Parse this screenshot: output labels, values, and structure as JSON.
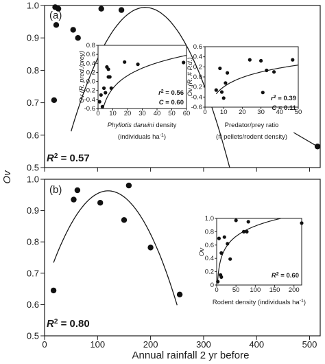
{
  "figure": {
    "ylabel_main": "Ov",
    "xlabel_main": "Annual rainfall 2 yr before"
  },
  "chart_data": [
    {
      "id": "a-main",
      "type": "scatter",
      "panel_label": "(a)",
      "xlabel": "",
      "ylabel": "Ov",
      "xlim": [
        0,
        520
      ],
      "ylim": [
        0.5,
        1.0
      ],
      "xticks": [
        0,
        100,
        200,
        300,
        400,
        500
      ],
      "yticks": [
        0.5,
        0.6,
        0.7,
        0.8,
        0.9,
        1.0
      ],
      "ytick_labels": [
        "0.5",
        "0.6",
        "0.7",
        "0.8",
        "0.9",
        "1.0"
      ],
      "points": [
        {
          "x": 20,
          "y": 0.995
        },
        {
          "x": 22,
          "y": 0.94
        },
        {
          "x": 26,
          "y": 0.99
        },
        {
          "x": 54,
          "y": 0.925
        },
        {
          "x": 63,
          "y": 0.9
        },
        {
          "x": 107,
          "y": 0.99
        },
        {
          "x": 145,
          "y": 0.986
        },
        {
          "x": 18,
          "y": 0.708
        },
        {
          "x": 515,
          "y": 0.565
        }
      ],
      "fit": {
        "type": "quadratic",
        "vertex_x": 190,
        "vertex_y": 0.994,
        "a": -1.95e-05,
        "x_range": [
          50,
          420
        ]
      },
      "tail_line": [
        {
          "x": 470,
          "y": 0.608
        },
        {
          "x": 515,
          "y": 0.565
        }
      ],
      "r2_label": "R",
      "r2_value": " = 0.57"
    },
    {
      "id": "a-inset1",
      "type": "scatter",
      "xlabel_italic": "Phyllotis darwini",
      "xlabel_rest": " density",
      "xlabel_units": "(individuals ha",
      "ylabel": "Ov (R. pred./prey)",
      "xlim": [
        0,
        60
      ],
      "ylim": [
        -0.6,
        0.8
      ],
      "xticks": [
        0,
        10,
        20,
        30,
        40,
        50,
        60
      ],
      "yticks": [
        -0.6,
        -0.4,
        -0.2,
        0.0,
        0.2,
        0.4,
        0.6,
        0.8
      ],
      "ytick_labels": [
        "-0.6",
        "-0.4",
        "-0.2",
        "0.0",
        "0.2",
        "0.4",
        "0.6",
        "0.8"
      ],
      "points": [
        {
          "x": 1,
          "y": -0.45
        },
        {
          "x": 2,
          "y": -0.3
        },
        {
          "x": 3,
          "y": -0.56
        },
        {
          "x": 4,
          "y": -0.15
        },
        {
          "x": 5,
          "y": -0.25
        },
        {
          "x": 6,
          "y": 0.32
        },
        {
          "x": 7,
          "y": 0.27
        },
        {
          "x": 7,
          "y": 0.1
        },
        {
          "x": 8,
          "y": 0.1
        },
        {
          "x": 9,
          "y": -0.15
        },
        {
          "x": 18,
          "y": 0.43
        },
        {
          "x": 27,
          "y": 0.38
        },
        {
          "x": 58,
          "y": 0.42
        }
      ],
      "fit": {
        "type": "log",
        "a": -1.1,
        "b": 0.41,
        "x_range": [
          1.2,
          60
        ]
      },
      "r2": "r",
      "r2_value": " = 0.56",
      "c": "C",
      "c_value": " = 0.60"
    },
    {
      "id": "a-inset2",
      "type": "scatter",
      "xlabel": "Predator/prey ratio",
      "xlabel_units": "(# pellets/rodent density)",
      "ylabel": "Ov (R. # P.d.)",
      "xlim": [
        0,
        50
      ],
      "ylim": [
        -0.6,
        0.6
      ],
      "xticks": [
        0,
        10,
        20,
        30,
        40,
        50
      ],
      "yticks": [
        -0.6,
        -0.4,
        -0.2,
        0.0,
        0.2,
        0.4,
        0.6
      ],
      "ytick_labels": [
        "-0.6",
        "-0.4",
        "-0.2",
        "0.0",
        "0.2",
        "0.4",
        "0.6"
      ],
      "points": [
        {
          "x": 6,
          "y": -0.26
        },
        {
          "x": 8,
          "y": 0.17
        },
        {
          "x": 9,
          "y": -0.3
        },
        {
          "x": 10,
          "y": -0.42
        },
        {
          "x": 11,
          "y": -0.12
        },
        {
          "x": 12,
          "y": 0.08
        },
        {
          "x": 24,
          "y": 0.34
        },
        {
          "x": 30,
          "y": 0.32
        },
        {
          "x": 33,
          "y": 0.13
        },
        {
          "x": 37,
          "y": 0.1
        },
        {
          "x": 47,
          "y": 0.34
        },
        {
          "x": 31,
          "y": -0.31
        }
      ],
      "fit": {
        "type": "log",
        "a": -0.82,
        "b": 0.27,
        "x_range": [
          6,
          50
        ]
      },
      "r2": "r",
      "r2_value": " = 0.39",
      "c": "C",
      "c_value": " = 0.11"
    },
    {
      "id": "b-main",
      "type": "scatter",
      "panel_label": "(b)",
      "xlabel": "Annual rainfall 2 yr before",
      "ylabel": "Ov",
      "xlim": [
        0,
        520
      ],
      "ylim": [
        0.5,
        1.0
      ],
      "xticks": [
        0,
        100,
        200,
        300,
        400,
        500
      ],
      "xtick_labels": [
        "0",
        "100",
        "200",
        "300",
        "400",
        "500"
      ],
      "yticks": [
        0.5,
        0.6,
        0.7,
        0.8,
        0.9,
        1.0
      ],
      "ytick_labels": [
        "0.5",
        "0.6",
        "0.7",
        "0.8",
        "0.9",
        "1.0"
      ],
      "points": [
        {
          "x": 17,
          "y": 0.645
        },
        {
          "x": 55,
          "y": 0.935
        },
        {
          "x": 62,
          "y": 0.965
        },
        {
          "x": 105,
          "y": 0.925
        },
        {
          "x": 150,
          "y": 0.87
        },
        {
          "x": 159,
          "y": 0.98
        },
        {
          "x": 200,
          "y": 0.782
        },
        {
          "x": 255,
          "y": 0.632
        }
      ],
      "fit": {
        "type": "quadratic",
        "vertex_x": 120,
        "vertex_y": 0.963,
        "a": -2.16e-05,
        "x_range": [
          17,
          250
        ]
      },
      "r2_label": "R",
      "r2_value": " = 0.80"
    },
    {
      "id": "b-inset",
      "type": "scatter",
      "xlabel": "Rodent density (individuals ha",
      "ylabel": "Ov",
      "xlim": [
        0,
        220
      ],
      "ylim": [
        0,
        1.0
      ],
      "xticks": [
        0,
        50,
        100,
        150,
        200
      ],
      "yticks": [
        0,
        0.2,
        0.4,
        0.6,
        0.8,
        1.0
      ],
      "ytick_labels": [
        "0",
        "0.2",
        "0.4",
        "0.6",
        "0.8",
        "1.0"
      ],
      "points": [
        {
          "x": 3,
          "y": 0.05
        },
        {
          "x": 6,
          "y": 0.7
        },
        {
          "x": 10,
          "y": 0.15
        },
        {
          "x": 12,
          "y": 0.12
        },
        {
          "x": 12,
          "y": 0.48
        },
        {
          "x": 20,
          "y": 0.72
        },
        {
          "x": 28,
          "y": 0.62
        },
        {
          "x": 35,
          "y": 0.39
        },
        {
          "x": 50,
          "y": 0.97
        },
        {
          "x": 70,
          "y": 0.8
        },
        {
          "x": 78,
          "y": 0.8
        },
        {
          "x": 82,
          "y": 0.95
        },
        {
          "x": 220,
          "y": 0.93
        }
      ],
      "fit": {
        "type": "log",
        "a": -0.15,
        "b": 0.225,
        "x_range": [
          2.5,
          220
        ]
      },
      "r2": "R",
      "r2_value": " = 0.60"
    }
  ]
}
